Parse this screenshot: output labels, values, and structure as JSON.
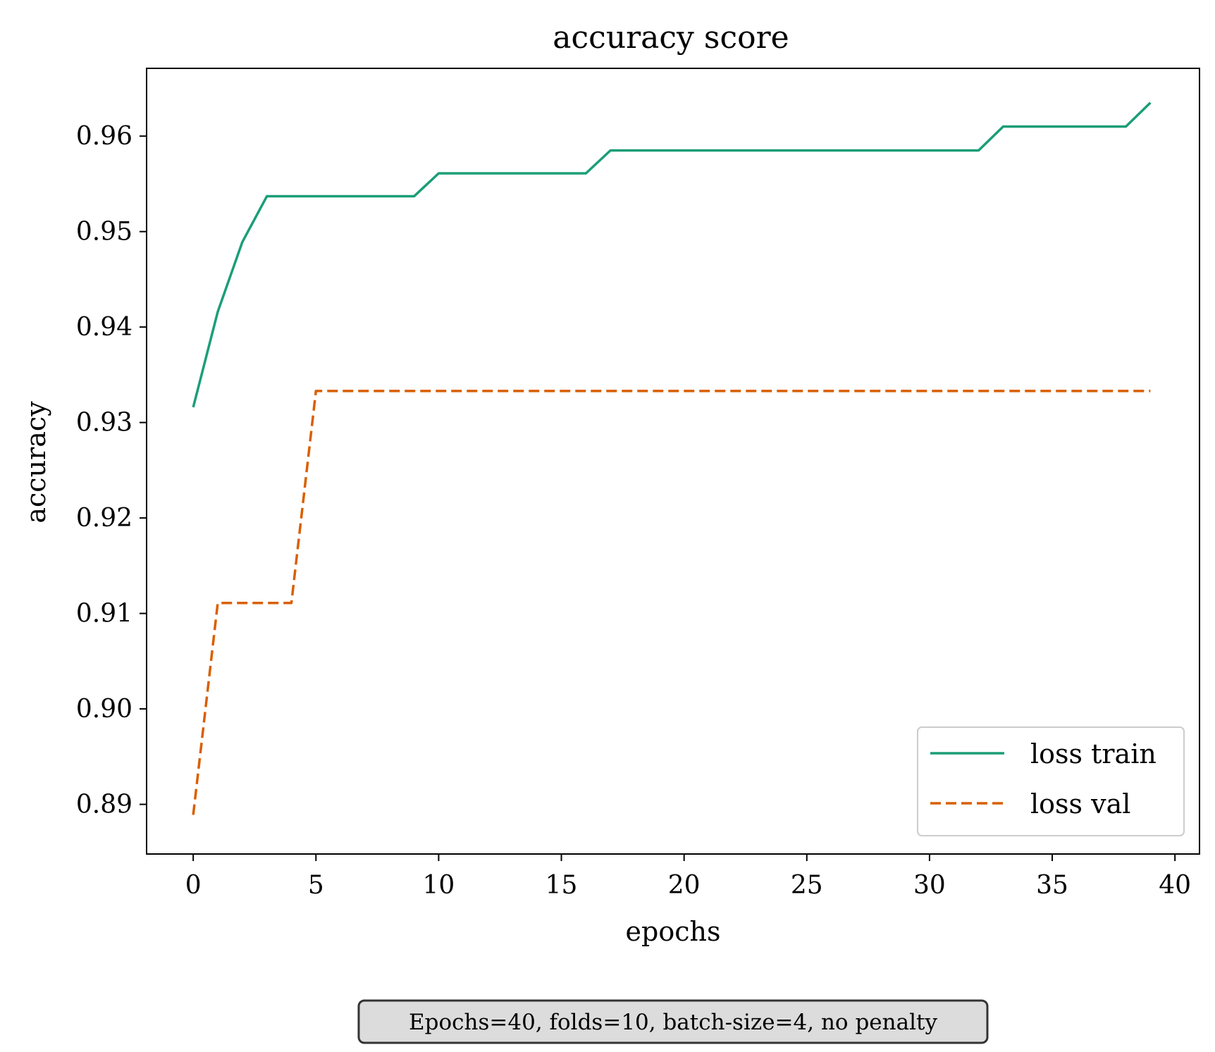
{
  "chart_data": {
    "type": "line",
    "title": "accuracy score",
    "xlabel": "epochs",
    "ylabel": "accuracy",
    "xlim": [
      -1.9,
      41.0
    ],
    "ylim": [
      0.8848,
      0.9671
    ],
    "xticks": [
      0,
      5,
      10,
      15,
      20,
      25,
      30,
      35,
      40
    ],
    "xtick_labels": [
      "0",
      "5",
      "10",
      "15",
      "20",
      "25",
      "30",
      "35",
      "40"
    ],
    "yticks": [
      0.89,
      0.9,
      0.91,
      0.92,
      0.93,
      0.94,
      0.95,
      0.96
    ],
    "ytick_labels": [
      "0.89",
      "0.90",
      "0.91",
      "0.92",
      "0.93",
      "0.94",
      "0.95",
      "0.96"
    ],
    "grid": false,
    "legend_position": "lower-right",
    "x": [
      0,
      1,
      2,
      3,
      4,
      5,
      6,
      7,
      8,
      9,
      10,
      11,
      12,
      13,
      14,
      15,
      16,
      17,
      18,
      19,
      20,
      21,
      22,
      23,
      24,
      25,
      26,
      27,
      28,
      29,
      30,
      31,
      32,
      33,
      34,
      35,
      36,
      37,
      38,
      39
    ],
    "series": [
      {
        "name": "loss train",
        "color": "#1b9e77",
        "style": "solid",
        "values": [
          0.9316,
          0.9416,
          0.9489,
          0.9537,
          0.9537,
          0.9537,
          0.9537,
          0.9537,
          0.9537,
          0.9537,
          0.9561,
          0.9561,
          0.9561,
          0.9561,
          0.9561,
          0.9561,
          0.9561,
          0.9585,
          0.9585,
          0.9585,
          0.9585,
          0.9585,
          0.9585,
          0.9585,
          0.9585,
          0.9585,
          0.9585,
          0.9585,
          0.9585,
          0.9585,
          0.9585,
          0.9585,
          0.9585,
          0.961,
          0.961,
          0.961,
          0.961,
          0.961,
          0.961,
          0.9635
        ]
      },
      {
        "name": "loss val",
        "color": "#d95f02",
        "style": "dashed",
        "values": [
          0.8889,
          0.9111,
          0.9111,
          0.9111,
          0.9111,
          0.9333,
          0.9333,
          0.9333,
          0.9333,
          0.9333,
          0.9333,
          0.9333,
          0.9333,
          0.9333,
          0.9333,
          0.9333,
          0.9333,
          0.9333,
          0.9333,
          0.9333,
          0.9333,
          0.9333,
          0.9333,
          0.9333,
          0.9333,
          0.9333,
          0.9333,
          0.9333,
          0.9333,
          0.9333,
          0.9333,
          0.9333,
          0.9333,
          0.9333,
          0.9333,
          0.9333,
          0.9333,
          0.9333,
          0.9333,
          0.9333
        ]
      }
    ],
    "annotation": "Epochs=40, folds=10, batch-size=4, no penalty",
    "annotation_bg": "#dcdcdc"
  }
}
